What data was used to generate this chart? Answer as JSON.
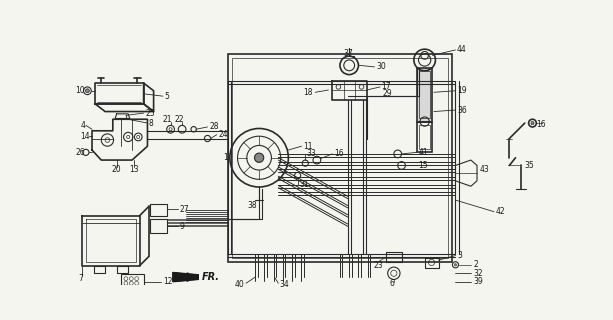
{
  "bg_color": "#f5f5f0",
  "line_color": "#2a2a2a",
  "fig_width": 6.13,
  "fig_height": 3.2,
  "dpi": 100,
  "fs": 5.5
}
